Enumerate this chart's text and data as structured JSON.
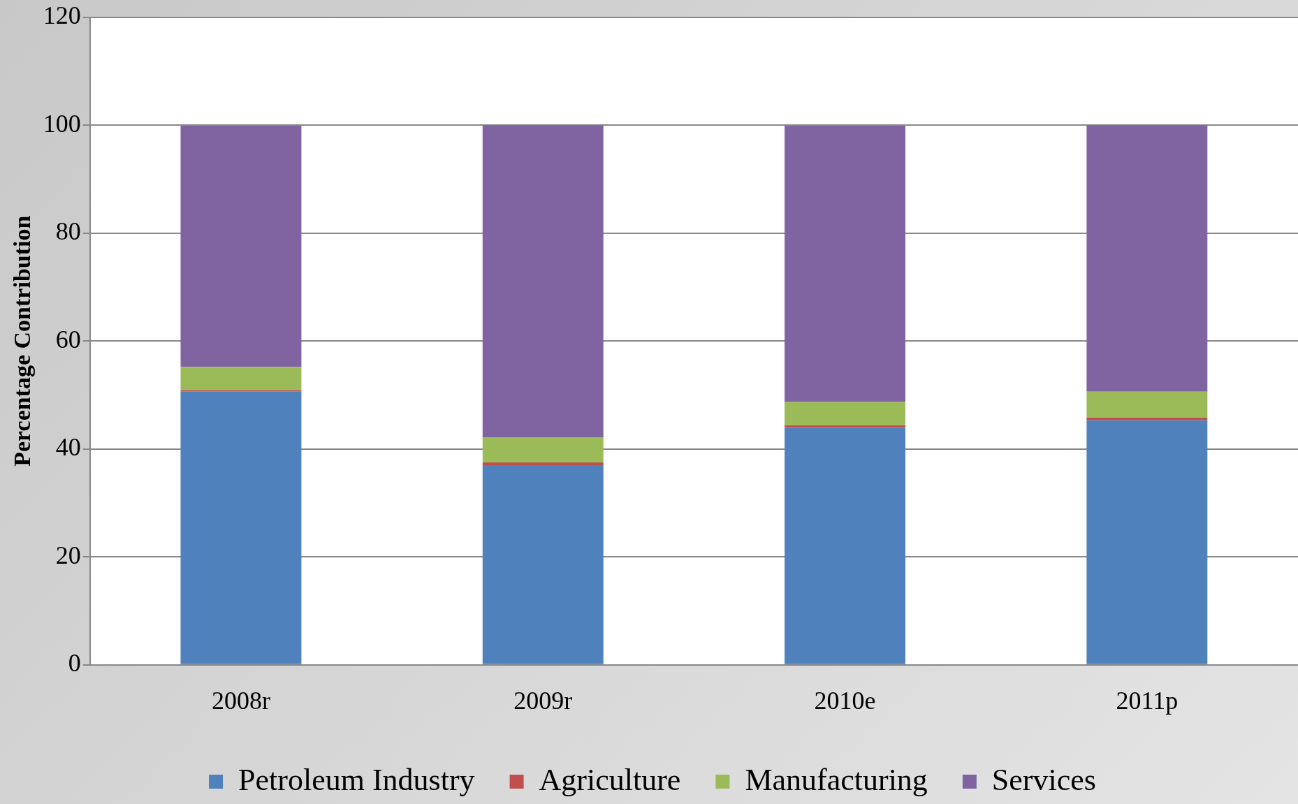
{
  "chart_data": {
    "type": "bar",
    "stacked": true,
    "ylabel": "Percentage Contribution",
    "categories": [
      "2008r",
      "2009r",
      "2010e",
      "2011p"
    ],
    "series": [
      {
        "name": "Petroleum Industry",
        "color": "#4f81bd",
        "values": [
          50.6,
          37.0,
          43.9,
          45.3
        ]
      },
      {
        "name": "Agriculture",
        "color": "#c0504d",
        "values": [
          0.3,
          0.5,
          0.5,
          0.5
        ]
      },
      {
        "name": "Manufacturing",
        "color": "#9bbb59",
        "values": [
          4.3,
          4.6,
          4.3,
          4.8
        ]
      },
      {
        "name": "Services",
        "color": "#8064a2",
        "values": [
          44.7,
          57.9,
          51.2,
          49.4
        ]
      }
    ],
    "ylim": [
      0,
      120
    ],
    "yticks": [
      0,
      20,
      40,
      60,
      80,
      100,
      120
    ],
    "grid": "y",
    "legend": "bottom"
  }
}
